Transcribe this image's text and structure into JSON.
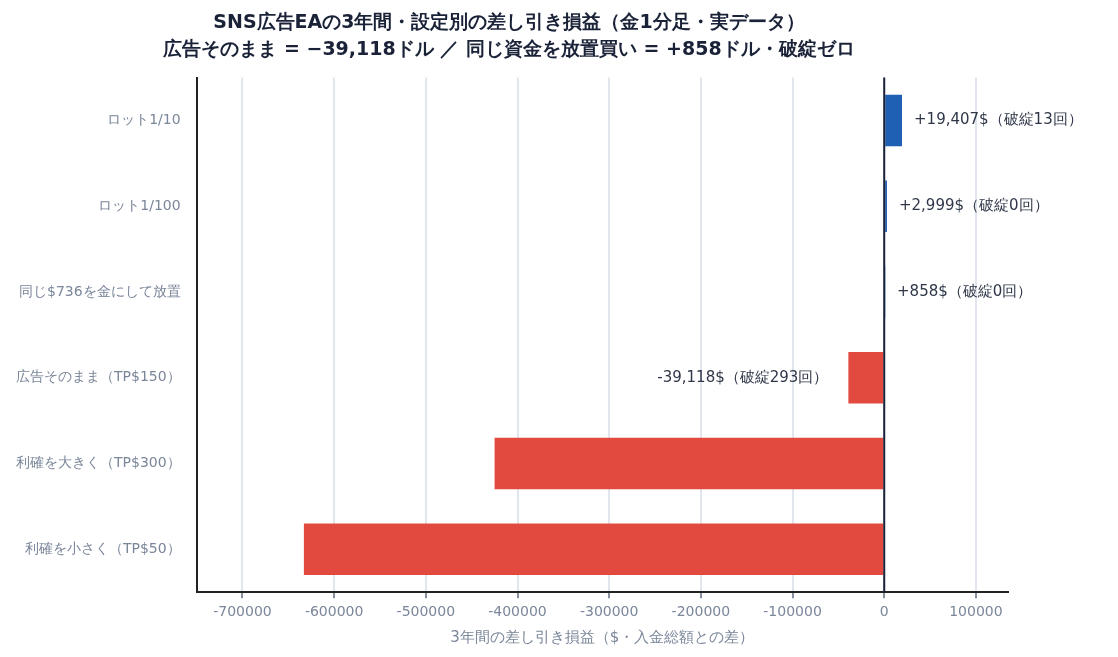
{
  "chart_data": {
    "type": "bar",
    "orientation": "horizontal",
    "title": "SNS広告EAの3年間・設定別の差し引き損益（金1分足・実データ）",
    "subtitle": "広告そのまま = −39,118ドル ／ 同じ資金を放置買い = +858ドル・破綻ゼロ",
    "xlabel": "3年間の差し引き損益（$・入金総額との差）",
    "categories": [
      "ロット1/10",
      "ロット1/100",
      "同じ$736を金にして放置",
      "広告そのまま（TP$150）",
      "利確を大きく（TP$300）",
      "利確を小さく（TP$50）"
    ],
    "values": [
      19407,
      2999,
      858,
      -39118,
      -425000,
      -633000
    ],
    "colors": [
      "#1f5fb4",
      "#1f5fb4",
      "#1f5fb4",
      "#e24a3f",
      "#e24a3f",
      "#e24a3f"
    ],
    "value_labels": [
      "+19,407$（破綻13回）",
      "+2,999$（破綻0回）",
      "+858$（破綻0回）",
      "-39,118$（破綻293回）",
      null,
      null
    ],
    "xlim": [
      -750000,
      135000
    ],
    "xticks": [
      -700000,
      -600000,
      -500000,
      -400000,
      -300000,
      -200000,
      -100000,
      0,
      100000
    ],
    "ref_lines": [
      {
        "axis": "x",
        "value": 0,
        "color": "#1a2238"
      }
    ],
    "grid": "x",
    "legend": false
  }
}
